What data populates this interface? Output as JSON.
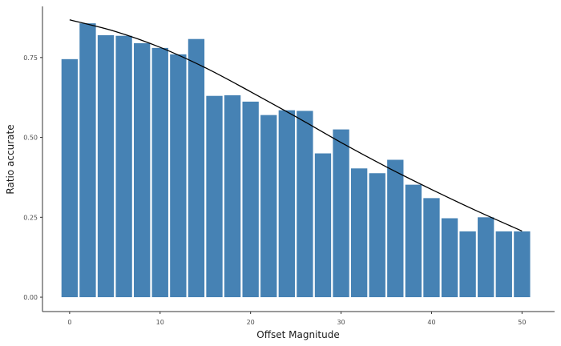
{
  "chart_data": {
    "type": "bar",
    "xlabel": "Offset Magnitude",
    "ylabel": "Ratio accurate",
    "xlim": [
      -3,
      53.6
    ],
    "ylim": [
      -0.045,
      0.91
    ],
    "x_ticks": [
      0,
      10,
      20,
      30,
      40,
      50
    ],
    "x_tick_labels": [
      "0",
      "10",
      "20",
      "30",
      "40",
      "50"
    ],
    "y_ticks": [
      0,
      0.25,
      0.5,
      0.75
    ],
    "y_tick_labels": [
      "0.00",
      "0.25",
      "0.50",
      "0.75"
    ],
    "grid": false,
    "bar_color": "#4682b4",
    "line_color": "#000000",
    "series": [
      {
        "type": "bar",
        "x": [
          0,
          2,
          4,
          6,
          8,
          10,
          12,
          14,
          16,
          18,
          20,
          22,
          24,
          26,
          28,
          30,
          32,
          34,
          36,
          38,
          40,
          42,
          44,
          46,
          48,
          50
        ],
        "values": [
          0.745,
          0.857,
          0.82,
          0.818,
          0.795,
          0.78,
          0.76,
          0.808,
          0.63,
          0.632,
          0.612,
          0.57,
          0.585,
          0.583,
          0.45,
          0.525,
          0.403,
          0.388,
          0.43,
          0.352,
          0.31,
          0.247,
          0.206,
          0.25,
          0.206,
          0.206
        ]
      },
      {
        "type": "line",
        "x": [
          0,
          5,
          10,
          15,
          20,
          25,
          30,
          35,
          40,
          45,
          50
        ],
        "values": [
          0.868,
          0.832,
          0.782,
          0.718,
          0.643,
          0.565,
          0.484,
          0.408,
          0.337,
          0.27,
          0.207
        ]
      }
    ]
  }
}
